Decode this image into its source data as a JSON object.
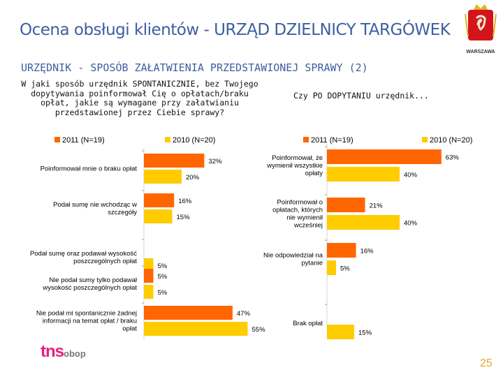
{
  "header": {
    "title": "Ocena obsługi klientów - URZĄD DZIELNICY TARGÓWEK",
    "subtitle": "URZĘDNIK - SPOSÓB ZAŁATWIENIA PRZEDSTAWIONEJ SPRAWY (2)",
    "logo_text": "WARSZAWA"
  },
  "questions": {
    "left": "W jaki sposób urzędnik SPONTANICZNIE, bez Twojego dopytywania poinformował Cię o opłatach/braku opłat, jakie są wymagane przy załatwianiu przedstawionej przez Ciebie sprawy?",
    "right": "Czy PO DOPYTANIU urzędnik..."
  },
  "footer": {
    "brand_main": "tns",
    "brand_sub": "obop",
    "page_number": "25"
  },
  "colors": {
    "series_2011": "#ff6600",
    "series_2010": "#ffcc00",
    "title": "#3d5fa0",
    "page_number": "#e2a82a"
  },
  "chart_data": [
    {
      "type": "bar",
      "orientation": "horizontal",
      "title": "W jaki sposób urzędnik SPONTANICZNIE, bez Twojego dopytywania poinformował Cię o opłatach/braku opłat, jakie są wymagane przy załatwianiu przedstawionej przez Ciebie sprawy?",
      "categories": [
        "Poinformował mnie o braku opłat",
        "Podał sumę nie wchodząc w szczegóły",
        "Podał sumę oraz podawał wysokość poszczególnych opłat",
        "Nie podał sumy tylko podawał wysokość poszczególnych opłat",
        "Nie podał mi spontanicznie żadnej informacji na temat opłat / braku opłat"
      ],
      "series": [
        {
          "name": "2011 (N=19)",
          "values": [
            32,
            16,
            0,
            5,
            47
          ],
          "labels": [
            "32%",
            "16%",
            "",
            "5%",
            "47%"
          ]
        },
        {
          "name": "2010 (N=20)",
          "values": [
            20,
            15,
            5,
            5,
            55
          ],
          "labels": [
            "20%",
            "15%",
            "5%",
            "5%",
            "55%"
          ]
        }
      ],
      "xlim": [
        0,
        100
      ],
      "legend": "top"
    },
    {
      "type": "bar",
      "orientation": "horizontal",
      "title": "Czy PO DOPYTANIU urzędnik...",
      "categories": [
        "Poinformował, że wymienił wszystkie opłaty",
        "Poinformował o opłatach, których nie wymienił wcześniej",
        "Nie odpowiedział na pytanie",
        "Brak opłat"
      ],
      "series": [
        {
          "name": "2011 (N=19)",
          "values": [
            63,
            21,
            16,
            0
          ],
          "labels": [
            "63%",
            "21%",
            "16%",
            ""
          ]
        },
        {
          "name": "2010 (N=20)",
          "values": [
            40,
            40,
            5,
            15
          ],
          "labels": [
            "40%",
            "40%",
            "5%",
            "15%"
          ]
        }
      ],
      "xlim": [
        0,
        100
      ],
      "legend": "top"
    }
  ]
}
